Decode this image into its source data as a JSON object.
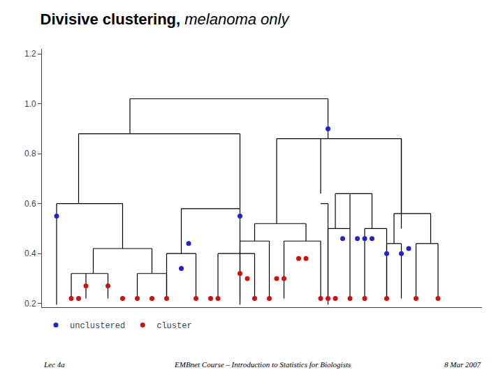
{
  "chart_data": {
    "type": "dendrogram",
    "title": "Divisive clustering,",
    "subtitle": "melanoma only",
    "annotations": [
      "Lec 4a",
      "EMBnet Course – Introduction to Statistics for Biologists",
      "8 Mar 2007"
    ],
    "xlim": [
      0.0,
      30.0
    ],
    "ylim": [
      0.185,
      1.22
    ],
    "yticks": [
      0.2,
      0.4,
      0.6,
      0.8,
      {
        "value": 1.0,
        "label": "1.0"
      },
      1.2
    ],
    "tick_labels": "y",
    "grid": false,
    "legend": "lower left",
    "series": [
      {
        "type": "segments",
        "color": "#000000",
        "segments": [
          [
            6.0,
            1.02,
            19.5,
            1.02
          ],
          [
            6.0,
            0.88,
            6.0,
            1.02
          ],
          [
            19.5,
            0.86,
            19.5,
            1.02
          ],
          [
            2.5,
            0.88,
            13.5,
            0.88
          ],
          [
            2.5,
            0.6,
            2.5,
            0.88
          ],
          [
            13.5,
            0.58,
            13.5,
            0.88
          ],
          [
            1.0,
            0.6,
            5.5,
            0.6
          ],
          [
            1.0,
            0.195,
            1.0,
            0.6
          ],
          [
            5.5,
            0.42,
            5.5,
            0.6
          ],
          [
            3.5,
            0.42,
            7.5,
            0.42
          ],
          [
            3.5,
            0.32,
            3.5,
            0.42
          ],
          [
            7.5,
            0.32,
            7.5,
            0.42
          ],
          [
            2.0,
            0.32,
            4.5,
            0.32
          ],
          [
            2.0,
            0.22,
            2.0,
            0.32
          ],
          [
            4.5,
            0.22,
            4.5,
            0.32
          ],
          [
            3.0,
            0.22,
            3.0,
            0.32
          ],
          [
            6.5,
            0.32,
            8.5,
            0.32
          ],
          [
            6.5,
            0.22,
            6.5,
            0.32
          ],
          [
            8.5,
            0.22,
            8.5,
            0.32
          ],
          [
            9.5,
            0.58,
            13.5,
            0.58
          ],
          [
            9.5,
            0.4,
            9.5,
            0.58
          ],
          [
            13.5,
            0.4,
            13.5,
            0.58
          ],
          [
            8.5,
            0.4,
            10.5,
            0.4
          ],
          [
            8.5,
            0.22,
            8.5,
            0.4
          ],
          [
            10.5,
            0.22,
            10.5,
            0.4
          ],
          [
            12.0,
            0.4,
            14.5,
            0.4
          ],
          [
            12.0,
            0.22,
            12.0,
            0.4
          ],
          [
            14.5,
            0.22,
            14.5,
            0.4
          ],
          [
            13.5,
            0.195,
            13.5,
            0.4
          ],
          [
            16.0,
            0.86,
            24.5,
            0.86
          ],
          [
            16.0,
            0.52,
            16.0,
            0.86
          ],
          [
            24.5,
            0.5,
            24.5,
            0.86
          ],
          [
            14.5,
            0.52,
            18.0,
            0.52
          ],
          [
            14.5,
            0.45,
            14.5,
            0.52
          ],
          [
            18.0,
            0.45,
            18.0,
            0.52
          ],
          [
            13.5,
            0.45,
            15.5,
            0.45
          ],
          [
            13.5,
            0.22,
            13.5,
            0.45
          ],
          [
            15.5,
            0.22,
            15.5,
            0.45
          ],
          [
            16.5,
            0.45,
            19.0,
            0.45
          ],
          [
            16.5,
            0.22,
            16.5,
            0.45
          ],
          [
            19.0,
            0.22,
            19.0,
            0.45
          ],
          [
            19.5,
            0.86,
            19.5,
            0.86
          ],
          [
            20.0,
            0.64,
            22.5,
            0.64
          ],
          [
            20.0,
            0.5,
            20.0,
            0.64
          ],
          [
            22.5,
            0.5,
            22.5,
            0.64
          ],
          [
            19.5,
            0.5,
            21.0,
            0.5
          ],
          [
            19.5,
            0.22,
            19.5,
            0.5
          ],
          [
            21.0,
            0.22,
            21.0,
            0.5
          ],
          [
            22.0,
            0.5,
            23.5,
            0.5
          ],
          [
            22.0,
            0.22,
            22.0,
            0.5
          ],
          [
            23.5,
            0.22,
            23.5,
            0.5
          ],
          [
            24.0,
            0.56,
            26.5,
            0.56
          ],
          [
            24.0,
            0.44,
            24.0,
            0.56
          ],
          [
            26.5,
            0.44,
            26.5,
            0.56
          ],
          [
            24.5,
            0.56,
            24.5,
            0.86
          ],
          [
            23.5,
            0.44,
            24.5,
            0.44
          ],
          [
            23.5,
            0.22,
            23.5,
            0.44
          ],
          [
            24.5,
            0.22,
            24.5,
            0.44
          ],
          [
            25.5,
            0.44,
            27.0,
            0.44
          ],
          [
            25.5,
            0.22,
            25.5,
            0.44
          ],
          [
            27.0,
            0.22,
            27.0,
            0.44
          ],
          [
            21.0,
            0.5,
            21.0,
            0.64
          ],
          [
            19.0,
            0.64,
            19.0,
            0.86
          ],
          [
            19.0,
            0.6,
            19.5,
            0.6
          ],
          [
            19.5,
            0.195,
            19.5,
            0.6
          ]
        ]
      },
      {
        "name": "unclustered",
        "type": "scatter",
        "color": "#2222cc",
        "x": [
          1.0,
          9.5,
          10.0,
          13.5,
          19.5,
          20.5,
          21.5,
          22.0,
          22.5,
          23.5,
          24.5,
          25.0
        ],
        "values": [
          0.55,
          0.34,
          0.44,
          0.55,
          0.9,
          0.46,
          0.46,
          0.46,
          0.46,
          0.4,
          0.4,
          0.42
        ]
      },
      {
        "name": "cluster",
        "type": "scatter",
        "color": "#cc1111",
        "x": [
          2.0,
          2.5,
          3.0,
          4.5,
          5.5,
          6.5,
          7.5,
          8.5,
          10.5,
          11.5,
          12.0,
          14.5,
          13.5,
          14.0,
          15.5,
          16.0,
          16.5,
          17.5,
          18.0,
          19.0,
          19.5,
          20.0,
          21.0,
          22.0,
          23.5,
          25.5,
          27.0
        ],
        "values": [
          0.22,
          0.22,
          0.27,
          0.27,
          0.22,
          0.22,
          0.22,
          0.22,
          0.22,
          0.22,
          0.22,
          0.22,
          0.32,
          0.3,
          0.22,
          0.3,
          0.3,
          0.38,
          0.38,
          0.22,
          0.22,
          0.22,
          0.22,
          0.22,
          0.22,
          0.22,
          0.22
        ]
      }
    ]
  }
}
